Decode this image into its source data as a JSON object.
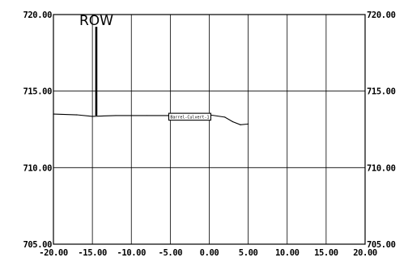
{
  "chart_data": {
    "type": "line",
    "x_ticks": [
      "-20.00",
      "-15.00",
      "-10.00",
      "-5.00",
      "0.00",
      "5.00",
      "10.00",
      "15.00",
      "20.00"
    ],
    "y_ticks_left": [
      "720.00",
      "715.00",
      "710.00",
      "705.00"
    ],
    "y_ticks_right": [
      "720.00",
      "715.00",
      "710.00",
      "705.00"
    ],
    "xlim": [
      -20,
      20
    ],
    "ylim": [
      705,
      720
    ],
    "grid": true,
    "series": [
      {
        "x": [
          -20,
          -17,
          -15,
          -12,
          -8,
          -5,
          -3,
          0,
          2,
          3,
          4,
          5
        ],
        "y": [
          713.5,
          713.45,
          713.35,
          713.4,
          713.4,
          713.4,
          713.45,
          713.45,
          713.3,
          713.0,
          712.8,
          712.85
        ]
      }
    ],
    "row_marker": {
      "label": "ROW",
      "x": -14.5,
      "y_top": 719.2,
      "y_bottom": 713.4
    },
    "culvert": {
      "label": "Barrel-Culvert-1",
      "x_start": -5.2,
      "x_end": 0.2,
      "y_top": 713.55,
      "y_bottom": 713.1
    },
    "colors": {
      "line": "#000000",
      "grid": "#000000",
      "background": "#ffffff"
    }
  }
}
